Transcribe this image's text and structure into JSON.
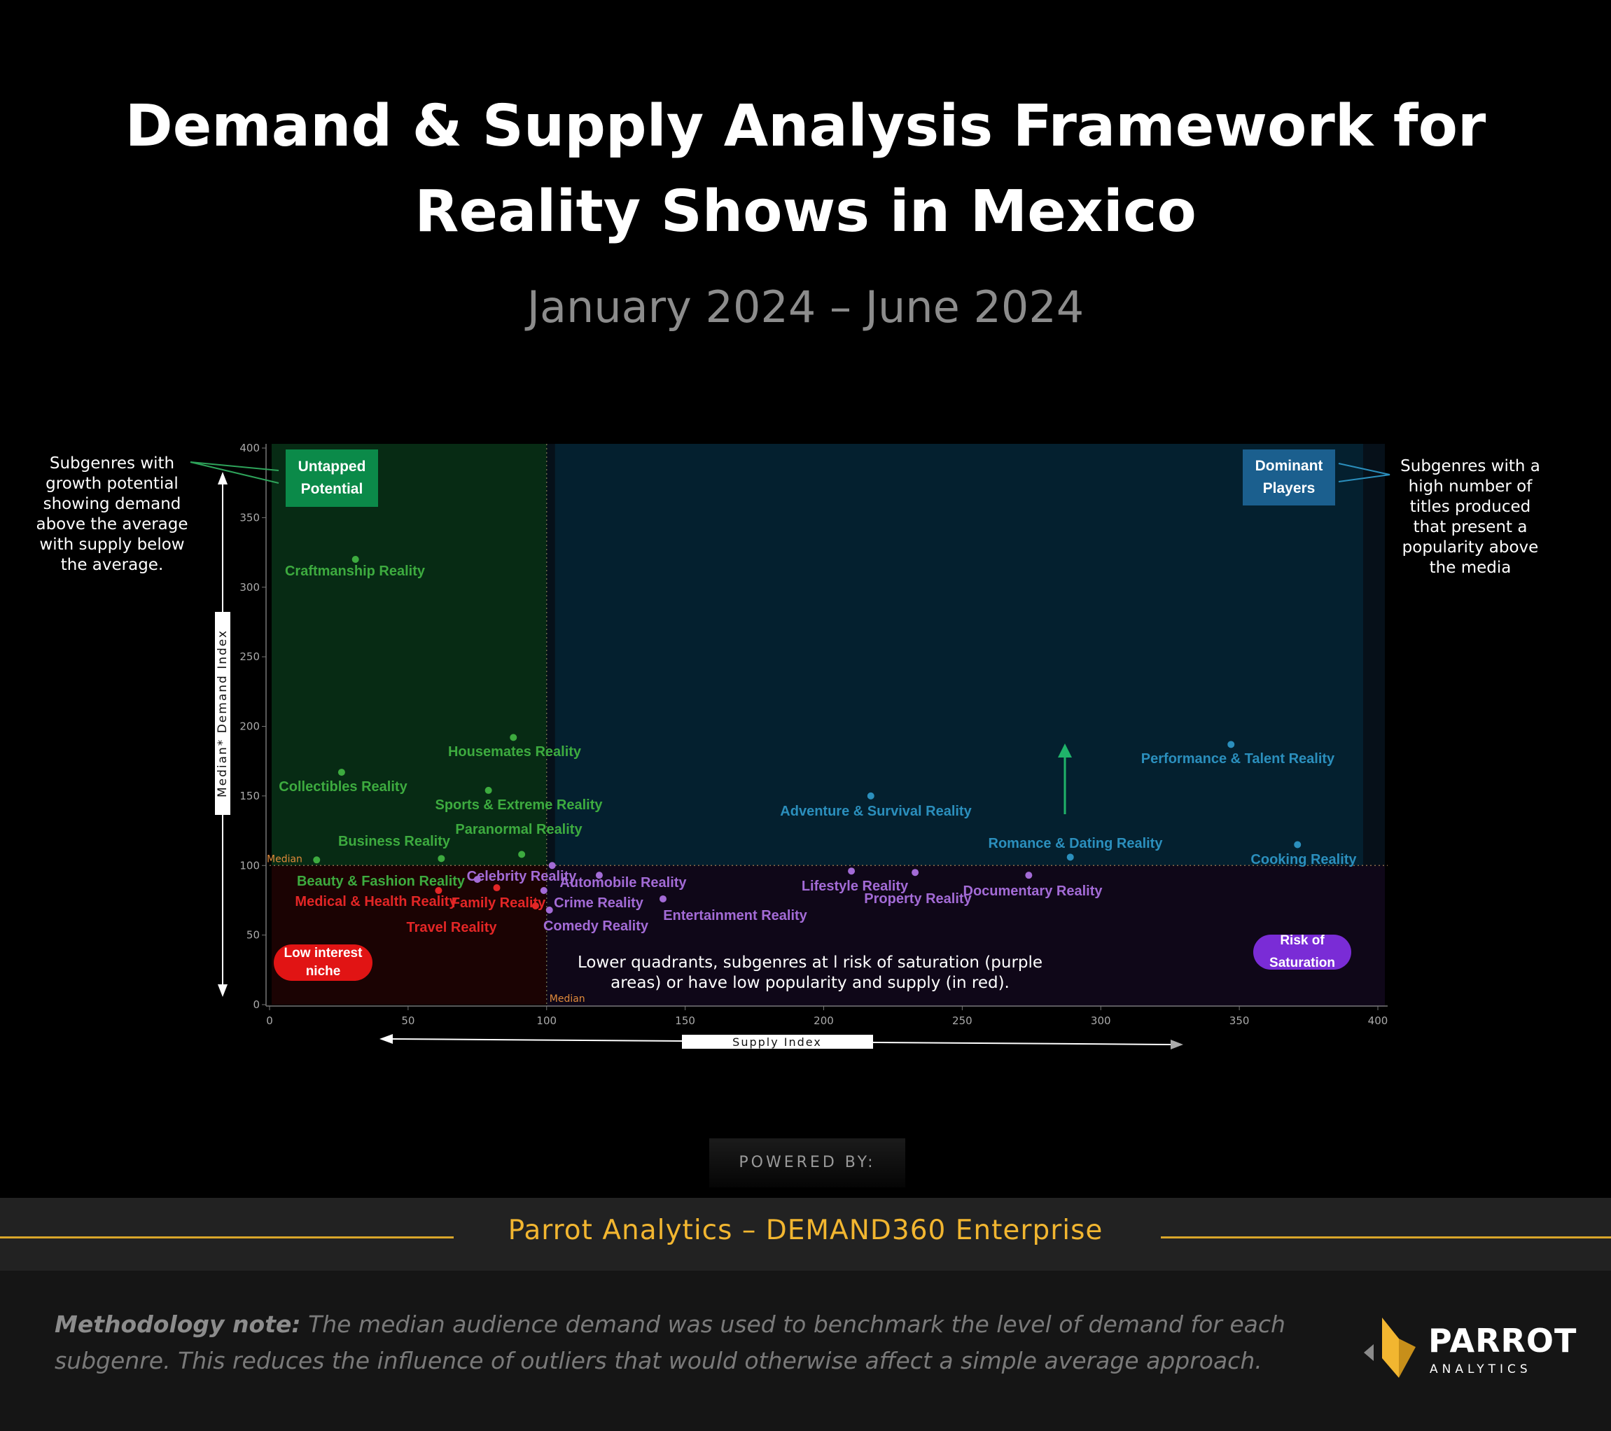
{
  "title_line1": "Demand & Supply Analysis Framework for",
  "title_line2": "Reality Shows in Mexico",
  "subtitle": "January 2024 – June 2024",
  "left_note": "Subgenres with\ngrowth potential\nshowing demand\nabove the average\nwith supply below\nthe average.",
  "right_note": "Subgenres with a\nhigh number of\ntitles produced\nthat present a\npopularity above\nthe media",
  "quadrant_labels": {
    "untapped": "Untapped\nPotential",
    "dominant": "Dominant\nPlayers",
    "low_interest": "Low interest\nniche",
    "saturation": "Risk of Saturation"
  },
  "lower_note_line1": "Lower quadrants, subgenres at l risk of saturation (purple",
  "lower_note_line2": "areas) or have low popularity and supply (in red).",
  "powered_by": "POWERED BY:",
  "brand_band": "Parrot Analytics – DEMAND360 Enterprise",
  "methodology_label": "Methodology note:",
  "methodology_text": " The median audience demand was used to benchmark the level of demand for each subgenre. This reduces the influence of outliers that would otherwise affect a simple average approach.",
  "logo": {
    "word": "PARROT",
    "sub": "ANALYTICS"
  },
  "colors": {
    "green": "#3dab3f",
    "blue": "#2b8fbd",
    "purple": "#a36bd6",
    "red": "#e32626",
    "green_bg": "#072b14",
    "blue_bg": "#04202f",
    "purple_bg": "#0f0718",
    "red_bg": "#1b0303",
    "accent_gold": "#f2b630"
  },
  "chart_data": {
    "type": "scatter",
    "xlabel": "Supply Index",
    "ylabel": "Median* Demand Index",
    "xlim": [
      0,
      400
    ],
    "ylim": [
      0,
      400
    ],
    "xticks": [
      0,
      50,
      100,
      150,
      200,
      250,
      300,
      350,
      400
    ],
    "yticks": [
      0,
      50,
      100,
      150,
      200,
      250,
      300,
      350,
      400
    ],
    "median_label": "Median",
    "median_x": 100,
    "median_y": 100,
    "points": [
      {
        "label": "Craftmanship Reality",
        "x": 31,
        "y": 320,
        "group": "green"
      },
      {
        "label": "Housemates Reality",
        "x": 88,
        "y": 192,
        "group": "green"
      },
      {
        "label": "Collectibles Reality",
        "x": 26,
        "y": 167,
        "group": "green"
      },
      {
        "label": "Sports & Extreme Reality",
        "x": 79,
        "y": 154,
        "group": "green"
      },
      {
        "label": "Paranormal Reality",
        "x": 91,
        "y": 108,
        "group": "green"
      },
      {
        "label": "Business Reality",
        "x": 62,
        "y": 105,
        "group": "green"
      },
      {
        "label": "Beauty & Fashion Reality",
        "x": 17,
        "y": 104,
        "group": "green"
      },
      {
        "label": "Performance & Talent Reality",
        "x": 347,
        "y": 187,
        "group": "blue"
      },
      {
        "label": "Adventure & Survival Reality",
        "x": 217,
        "y": 150,
        "group": "blue"
      },
      {
        "label": "Romance & Dating Reality",
        "x": 289,
        "y": 106,
        "group": "blue"
      },
      {
        "label": "Cooking Reality",
        "x": 371,
        "y": 115,
        "group": "blue"
      },
      {
        "label": "Celebrity Reality",
        "x": 102,
        "y": 100,
        "group": "purple"
      },
      {
        "label": "Automobile Reality",
        "x": 119,
        "y": 93,
        "group": "purple"
      },
      {
        "label": "Crime Reality",
        "x": 99,
        "y": 82,
        "group": "purple"
      },
      {
        "label": "Comedy Reality",
        "x": 101,
        "y": 68,
        "group": "purple"
      },
      {
        "label": "Entertainment Reality",
        "x": 142,
        "y": 76,
        "group": "purple"
      },
      {
        "label": "Lifestyle Reality",
        "x": 210,
        "y": 96,
        "group": "purple"
      },
      {
        "label": "Property Reality",
        "x": 233,
        "y": 95,
        "group": "purple"
      },
      {
        "label": "Documentary Reality",
        "x": 274,
        "y": 93,
        "group": "purple"
      },
      {
        "label": "Medical & Health Reality",
        "x": 61,
        "y": 82,
        "group": "red"
      },
      {
        "label": "Family Reality",
        "x": 82,
        "y": 84,
        "group": "red"
      },
      {
        "label": "Travel Reality",
        "x": 96,
        "y": 71,
        "group": "red"
      },
      {
        "label": "",
        "x": 75,
        "y": 90,
        "group": "purple"
      }
    ]
  }
}
